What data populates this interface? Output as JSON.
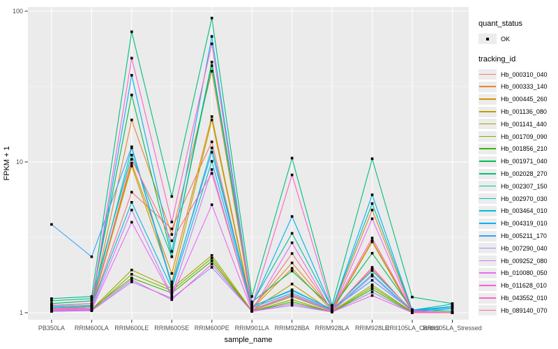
{
  "legend": {
    "quant_status_title": "quant_status",
    "ok_label": "OK",
    "tracking_id_title": "tracking_id"
  },
  "chart_data": {
    "type": "line",
    "title": "",
    "xlabel": "sample_name",
    "ylabel": "FPKM + 1",
    "y_scale": "log10",
    "ylim": [
      0.9,
      107
    ],
    "y_major_ticks": [
      100,
      10,
      1
    ],
    "y_minor_ticks": [
      3.162,
      31.623
    ],
    "grid": true,
    "legend_position": "right",
    "panel_bg": "#EBEBEB",
    "grid_color": "#FFFFFF",
    "point_color": "#000000",
    "axis_text_color": "#4D4D4D",
    "quant_status_value": "OK",
    "categories": [
      "PB350LA",
      "RRIM600LA",
      "RRIM600LE",
      "RRIM600SE",
      "RRIM600PE",
      "RRIM901LA",
      "RRIM928BA",
      "RRIM928LA",
      "RRIM928LE",
      "RRII105LA_Control",
      "RRII105LA_Stressed"
    ],
    "series": [
      {
        "id": "Hb_000310_040",
        "color": "#F8766D",
        "values": [
          1.06,
          1.1,
          6.3,
          3.6,
          13.6,
          1.05,
          2.47,
          1.04,
          1.95,
          1.02,
          1.0
        ]
      },
      {
        "id": "Hb_000333_140",
        "color": "#EA8331",
        "values": [
          1.1,
          1.12,
          19.0,
          3.3,
          40.0,
          1.08,
          2.14,
          1.05,
          4.8,
          1.03,
          1.0
        ]
      },
      {
        "id": "Hb_000445_260",
        "color": "#D89000",
        "values": [
          1.08,
          1.1,
          9.8,
          1.82,
          20.0,
          1.06,
          1.97,
          1.03,
          3.0,
          1.02,
          1.0
        ]
      },
      {
        "id": "Hb_001136_080",
        "color": "#C09B00",
        "values": [
          1.05,
          1.08,
          9.4,
          1.6,
          19.0,
          1.04,
          1.55,
          1.02,
          2.95,
          1.01,
          1.0
        ]
      },
      {
        "id": "Hb_001141_440",
        "color": "#A3A500",
        "values": [
          1.03,
          1.05,
          1.92,
          1.45,
          2.4,
          1.03,
          1.28,
          1.02,
          1.53,
          1.01,
          1.0
        ]
      },
      {
        "id": "Hb_001709_090",
        "color": "#7CAE00",
        "values": [
          1.02,
          1.04,
          1.8,
          1.4,
          2.3,
          1.02,
          1.22,
          1.01,
          1.48,
          1.01,
          1.0
        ]
      },
      {
        "id": "Hb_001856_210",
        "color": "#39B600",
        "values": [
          1.04,
          1.06,
          1.7,
          1.35,
          2.2,
          1.02,
          1.18,
          1.01,
          1.43,
          1.0,
          1.0
        ]
      },
      {
        "id": "Hb_001971_040",
        "color": "#00BB4E",
        "values": [
          1.15,
          1.2,
          27.8,
          2.35,
          45.9,
          1.18,
          1.89,
          1.08,
          2.48,
          1.05,
          1.02
        ]
      },
      {
        "id": "Hb_002028_270",
        "color": "#00BF7D",
        "values": [
          1.24,
          1.28,
          73.0,
          5.9,
          90.0,
          1.28,
          10.6,
          1.12,
          10.5,
          1.27,
          1.15
        ]
      },
      {
        "id": "Hb_002307_150",
        "color": "#00C1A3",
        "values": [
          1.2,
          1.24,
          11.1,
          2.35,
          43.5,
          1.15,
          3.36,
          1.07,
          5.3,
          1.04,
          1.14
        ]
      },
      {
        "id": "Hb_002970_030",
        "color": "#00BFC4",
        "values": [
          1.1,
          1.12,
          12.4,
          1.5,
          12.4,
          1.1,
          1.42,
          1.05,
          1.9,
          1.03,
          1.1
        ]
      },
      {
        "id": "Hb_003464_010",
        "color": "#00BADE",
        "values": [
          1.08,
          1.1,
          5.4,
          1.45,
          10.1,
          1.08,
          1.35,
          1.04,
          1.79,
          1.02,
          1.06
        ]
      },
      {
        "id": "Hb_004319_010",
        "color": "#00B0F6",
        "values": [
          1.12,
          1.15,
          37.6,
          2.55,
          68.0,
          1.12,
          4.35,
          1.06,
          6.05,
          1.04,
          1.1
        ]
      },
      {
        "id": "Hb_005211_170",
        "color": "#35A2FF",
        "values": [
          3.85,
          2.35,
          12.6,
          1.55,
          11.6,
          1.1,
          1.4,
          1.05,
          1.64,
          1.03,
          1.08
        ]
      },
      {
        "id": "Hb_007290_040",
        "color": "#9590FF",
        "values": [
          1.02,
          1.03,
          1.6,
          1.25,
          2.0,
          1.02,
          1.12,
          1.01,
          1.37,
          1.0,
          1.0
        ]
      },
      {
        "id": "Hb_009252_080",
        "color": "#C77CFF",
        "values": [
          1.05,
          1.06,
          4.8,
          1.3,
          8.9,
          1.04,
          1.3,
          1.02,
          1.75,
          1.01,
          1.0
        ]
      },
      {
        "id": "Hb_010080_050",
        "color": "#E76BF3",
        "values": [
          1.04,
          1.05,
          3.98,
          1.28,
          5.2,
          1.03,
          2.91,
          1.02,
          4.2,
          1.01,
          1.0
        ]
      },
      {
        "id": "Hb_011628_010",
        "color": "#FA62DB",
        "values": [
          1.03,
          1.04,
          1.65,
          1.22,
          2.1,
          1.02,
          1.15,
          1.01,
          1.3,
          1.0,
          1.0
        ]
      },
      {
        "id": "Hb_043552_010",
        "color": "#FF61CC",
        "values": [
          1.12,
          1.15,
          48.8,
          4.0,
          60.8,
          1.1,
          8.2,
          1.06,
          3.13,
          1.03,
          1.0
        ]
      },
      {
        "id": "Hb_089140_070",
        "color": "#FF6A98",
        "values": [
          1.06,
          1.08,
          10.4,
          3.0,
          8.4,
          1.05,
          1.32,
          1.03,
          2.0,
          1.01,
          1.0
        ]
      }
    ]
  }
}
